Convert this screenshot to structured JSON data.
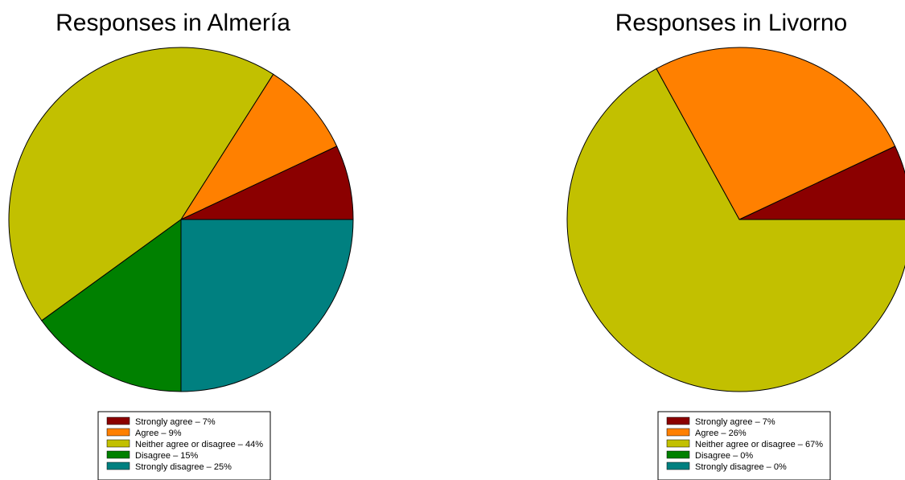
{
  "chart_data": [
    {
      "type": "pie",
      "title": "Responses in Almería",
      "series": [
        {
          "name": "Strongly agree",
          "value": 7,
          "label": "Strongly agree – 7%",
          "color": "#8B0000"
        },
        {
          "name": "Agree",
          "value": 9,
          "label": "Agree – 9%",
          "color": "#FF8000"
        },
        {
          "name": "Neither agree or disagree",
          "value": 44,
          "label": "Neither agree or disagree – 44%",
          "color": "#C2C000"
        },
        {
          "name": "Disagree",
          "value": 15,
          "label": "Disagree – 15%",
          "color": "#008000"
        },
        {
          "name": "Strongly disagree",
          "value": 25,
          "label": "Strongly disagree – 25%",
          "color": "#008080"
        }
      ],
      "legend_position": "bottom"
    },
    {
      "type": "pie",
      "title": "Responses in Livorno",
      "series": [
        {
          "name": "Strongly agree",
          "value": 7,
          "label": "Strongly agree – 7%",
          "color": "#8B0000"
        },
        {
          "name": "Agree",
          "value": 26,
          "label": "Agree – 26%",
          "color": "#FF8000"
        },
        {
          "name": "Neither agree or disagree",
          "value": 67,
          "label": "Neither agree or disagree – 67%",
          "color": "#C2C000"
        },
        {
          "name": "Disagree",
          "value": 0,
          "label": "Disagree – 0%",
          "color": "#008000"
        },
        {
          "name": "Strongly disagree",
          "value": 0,
          "label": "Strongly disagree – 0%",
          "color": "#008080"
        }
      ],
      "legend_position": "bottom"
    }
  ]
}
